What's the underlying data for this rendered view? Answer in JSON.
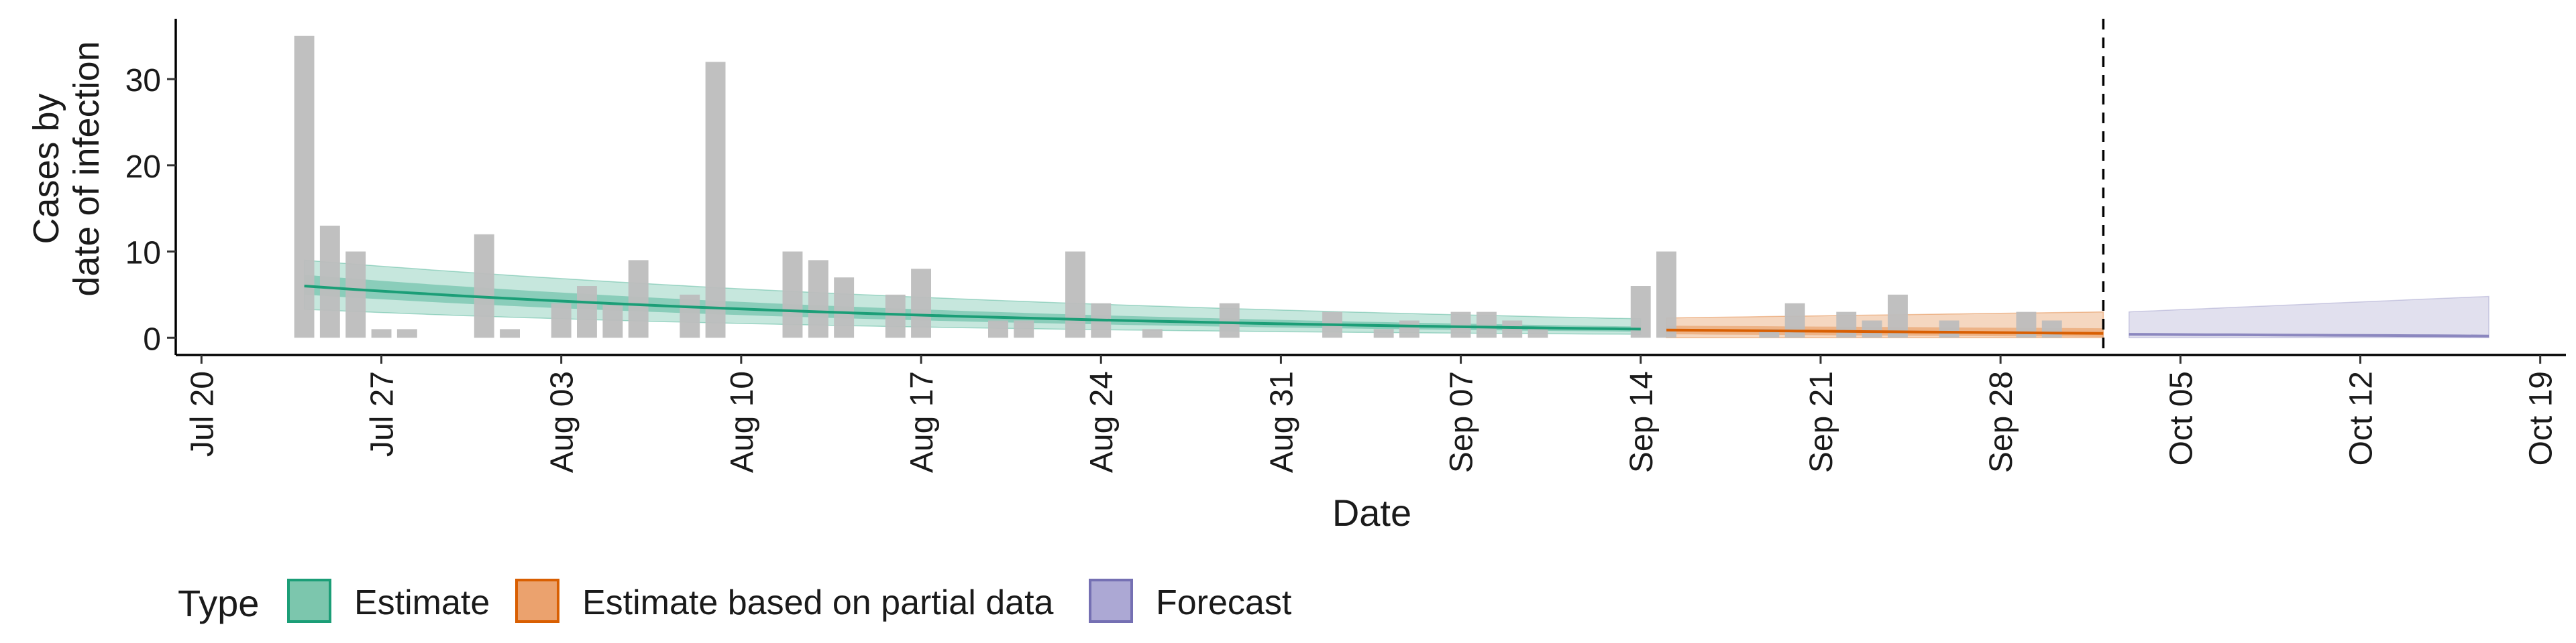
{
  "chart_data": {
    "type": "bar",
    "xlabel": "Date",
    "ylabel_lines": [
      "Cases by",
      "date of infection"
    ],
    "ylim": [
      -2,
      37
    ],
    "xlim": [
      "2020-07-19",
      "2020-10-20"
    ],
    "y_ticks": [
      0,
      10,
      20,
      30
    ],
    "x_ticks": [
      {
        "date": "2020-07-20",
        "label": "Jul 20"
      },
      {
        "date": "2020-07-27",
        "label": "Jul 27"
      },
      {
        "date": "2020-08-03",
        "label": "Aug 03"
      },
      {
        "date": "2020-08-10",
        "label": "Aug 10"
      },
      {
        "date": "2020-08-17",
        "label": "Aug 17"
      },
      {
        "date": "2020-08-24",
        "label": "Aug 24"
      },
      {
        "date": "2020-08-31",
        "label": "Aug 31"
      },
      {
        "date": "2020-09-07",
        "label": "Sep 07"
      },
      {
        "date": "2020-09-14",
        "label": "Sep 14"
      },
      {
        "date": "2020-09-21",
        "label": "Sep 21"
      },
      {
        "date": "2020-09-28",
        "label": "Sep 28"
      },
      {
        "date": "2020-10-05",
        "label": "Oct 05"
      },
      {
        "date": "2020-10-12",
        "label": "Oct 12"
      },
      {
        "date": "2020-10-19",
        "label": "Oct 19"
      }
    ],
    "grid": false,
    "vline_date": "2020-10-02",
    "legend": {
      "title": "Type",
      "position": "bottom",
      "entries": [
        {
          "label": "Estimate",
          "fill": "#7cc6ad",
          "stroke": "#1b9e77"
        },
        {
          "label": "Estimate based on partial data",
          "fill": "#eba26e",
          "stroke": "#d95f02"
        },
        {
          "label": "Forecast",
          "fill": "#aca8d4",
          "stroke": "#7570b3"
        }
      ]
    },
    "colors": {
      "bars": "#bdbdbd",
      "estimate": "#1b9e77",
      "partial": "#d95f02",
      "forecast": "#7570b3"
    },
    "bars": {
      "dates": [
        "2020-07-24",
        "2020-07-25",
        "2020-07-26",
        "2020-07-27",
        "2020-07-28",
        "2020-07-31",
        "2020-08-01",
        "2020-08-03",
        "2020-08-04",
        "2020-08-05",
        "2020-08-06",
        "2020-08-08",
        "2020-08-09",
        "2020-08-12",
        "2020-08-13",
        "2020-08-14",
        "2020-08-16",
        "2020-08-17",
        "2020-08-20",
        "2020-08-21",
        "2020-08-23",
        "2020-08-24",
        "2020-08-26",
        "2020-08-29",
        "2020-09-02",
        "2020-09-04",
        "2020-09-05",
        "2020-09-07",
        "2020-09-08",
        "2020-09-09",
        "2020-09-10",
        "2020-09-14",
        "2020-09-15",
        "2020-09-19",
        "2020-09-20",
        "2020-09-22",
        "2020-09-23",
        "2020-09-24",
        "2020-09-26",
        "2020-09-29",
        "2020-09-30"
      ],
      "values": [
        35,
        13,
        10,
        1,
        1,
        12,
        1,
        4,
        6,
        4,
        9,
        5,
        32,
        10,
        9,
        7,
        5,
        8,
        2,
        2,
        10,
        4,
        1,
        4,
        3,
        1,
        2,
        3,
        3,
        2,
        1,
        6,
        10,
        1,
        4,
        3,
        2,
        5,
        2,
        3,
        2
      ]
    },
    "estimate": {
      "start": "2020-07-24",
      "end": "2020-09-14",
      "median_start": 6.0,
      "median_end": 1.0,
      "inner_band_start": [
        5.0,
        7.3
      ],
      "inner_band_end": [
        0.7,
        1.3
      ],
      "outer_band_start": [
        3.3,
        9.0
      ],
      "outer_band_end": [
        0.4,
        2.2
      ]
    },
    "partial": {
      "start": "2020-09-15",
      "end": "2020-10-02",
      "median": [
        0.9,
        0.5
      ],
      "inner_band": [
        [
          0.4,
          1.4
        ],
        [
          0.1,
          1.1
        ]
      ],
      "outer_band": [
        [
          0.0,
          2.3
        ],
        [
          0.0,
          3.0
        ]
      ]
    },
    "forecast": {
      "start": "2020-10-03",
      "end": "2020-10-17",
      "median": [
        0.4,
        0.2
      ],
      "outer_band": [
        [
          0.0,
          3.0
        ],
        [
          0.0,
          4.8
        ]
      ]
    }
  }
}
